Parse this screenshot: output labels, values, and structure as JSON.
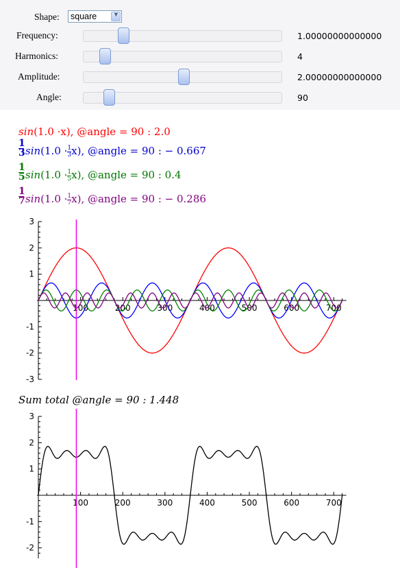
{
  "controls": {
    "shape": {
      "label": "Shape:",
      "value": "square"
    },
    "frequency": {
      "label": "Frequency:",
      "value_text": "1.00000000000000",
      "level": 0.2
    },
    "harmonics": {
      "label": "Harmonics:",
      "value_text": "4",
      "level": 0.107
    },
    "amplitude": {
      "label": "Amplitude:",
      "value_text": "2.00000000000000",
      "level": 0.505
    },
    "angle": {
      "label": "Angle:",
      "value_text": "90",
      "level": 0.128
    }
  },
  "formulas": {
    "f1": {
      "text_a": "sin",
      "text_b": "(1.0 ·x),  @angle = 90 :  2.0",
      "color": "#ff0000"
    },
    "f2": {
      "num": "1",
      "den": "3",
      "text_a": "sin",
      "text_b": "(1.0 ·",
      "text_c": "x),  @angle = 90 :   − 0.667",
      "color": "#0000cc"
    },
    "f3": {
      "num": "1",
      "den": "5",
      "text_a": "sin",
      "text_b": "(1.0 ·",
      "text_c": "x),  @angle = 90 :  0.4",
      "color": "#007700"
    },
    "f4": {
      "num": "1",
      "den": "7",
      "text_a": "sin",
      "text_b": "(1.0 ·",
      "text_c": "x),  @angle = 90 :   − 0.286",
      "color": "#7f007f"
    },
    "sum": {
      "text": "Sum total @angle = 90 :  1.448",
      "color": "#000000"
    }
  },
  "chart_data": [
    {
      "type": "line",
      "x_range": [
        0,
        720
      ],
      "ylim": [
        -3,
        3
      ],
      "x_ticks": [
        "100",
        "200",
        "300",
        "400",
        "500",
        "600",
        "700"
      ],
      "y_ticks": [
        "3",
        "2",
        "1",
        "-1",
        "-2",
        "-3"
      ],
      "series": [
        {
          "function": "sin(x)",
          "amplitude": 2.0,
          "harmonic": 1,
          "color": "#ff0000"
        },
        {
          "function": "sin(3x)",
          "amplitude": 0.667,
          "harmonic": 3,
          "color": "#0000ff"
        },
        {
          "function": "sin(5x)",
          "amplitude": 0.4,
          "harmonic": 5,
          "color": "#008000"
        },
        {
          "function": "sin(7x)",
          "amplitude": 0.286,
          "harmonic": 7,
          "color": "#800080"
        }
      ],
      "marker_x": 90,
      "marker_color": "#ee00ee"
    },
    {
      "type": "line",
      "x_range": [
        0,
        720
      ],
      "ylim": [
        -2.4,
        3
      ],
      "x_ticks": [
        "100",
        "200",
        "300",
        "400",
        "500",
        "600",
        "700"
      ],
      "y_ticks": [
        "3",
        "2",
        "1",
        "-1",
        "-2"
      ],
      "series": [
        {
          "function": "sum",
          "color": "#000000"
        }
      ],
      "marker_x": 90,
      "marker_color": "#ee00ee"
    }
  ]
}
